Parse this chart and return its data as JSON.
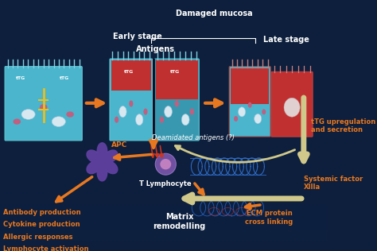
{
  "bg_color": "#0d1f3c",
  "labels": {
    "early_stage": "Early stage",
    "damaged_mucosa": "Damaged mucosa",
    "antigens": "Antigens",
    "late_stage": "Late stage",
    "deamidated": "Deamidated antigens (?)",
    "apc": "APC",
    "t_lymphocyte": "T Lymphocyte",
    "antibody": "Antibody production",
    "cytokine": "Cytokine production",
    "allergic": "Allergic responses",
    "lymphocyte": "Lymphocyte activation",
    "matrix": "Matrix\nremodelling",
    "tTG_upreg": "tTG upregulation\nand secretion",
    "systemic": "Systemic factor\nXIIIa",
    "ecm": "ECM protein\ncross linking"
  },
  "orange": "#e87820",
  "white": "#ffffff",
  "cell_teal": "#4ab5cc",
  "cell_red": "#c03030",
  "purple": "#7050a0",
  "yellow": "#e8c020",
  "blue_fiber": "#2050c0",
  "cream": "#d0c88a"
}
